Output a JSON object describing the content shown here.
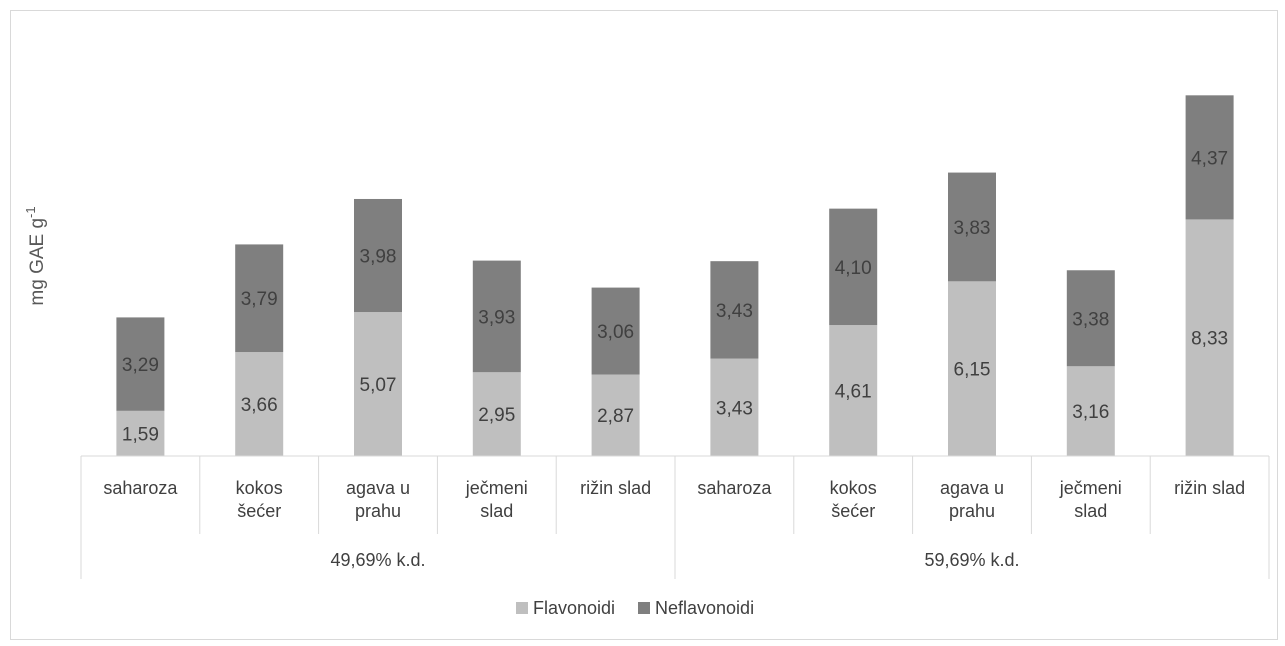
{
  "chart_data": {
    "type": "bar",
    "stacked": true,
    "title": "",
    "xlabel": "",
    "ylabel": "mg GAE g",
    "ylabel_superscript": "-1",
    "ylim": [
      0,
      13.2
    ],
    "grid": false,
    "legend_position": "bottom-center",
    "categories": [
      "saharoza",
      "kokos šećer",
      "agava u prahu",
      "ječmeni slad",
      "rižin slad",
      "saharoza",
      "kokos šećer",
      "agava u prahu",
      "ječmeni slad",
      "rižin slad"
    ],
    "category_lines": [
      [
        "saharoza"
      ],
      [
        "kokos",
        "šećer"
      ],
      [
        "agava u",
        "prahu"
      ],
      [
        "ječmeni",
        "slad"
      ],
      [
        "rižin slad"
      ],
      [
        "saharoza"
      ],
      [
        "kokos",
        "šećer"
      ],
      [
        "agava u",
        "prahu"
      ],
      [
        "ječmeni",
        "slad"
      ],
      [
        "rižin slad"
      ]
    ],
    "groups": [
      {
        "label": "49,69% k.d.",
        "start": 0,
        "count": 5
      },
      {
        "label": "59,69% k.d.",
        "start": 5,
        "count": 5
      }
    ],
    "series": [
      {
        "name": "Flavonoidi",
        "color": "#bfbfbf",
        "values": [
          1.59,
          3.66,
          5.07,
          2.95,
          2.87,
          3.43,
          4.61,
          6.15,
          3.16,
          8.33
        ],
        "labels": [
          "1,59",
          "3,66",
          "5,07",
          "2,95",
          "2,87",
          "3,43",
          "4,61",
          "6,15",
          "3,16",
          "8,33"
        ]
      },
      {
        "name": "Neflavonoidi",
        "color": "#7f7f7f",
        "values": [
          3.29,
          3.79,
          3.98,
          3.93,
          3.06,
          3.43,
          4.1,
          3.83,
          3.38,
          4.37
        ],
        "labels": [
          "3,29",
          "3,79",
          "3,98",
          "3,93",
          "3,06",
          "3,43",
          "4,10",
          "3,83",
          "3,38",
          "4,37"
        ]
      }
    ]
  }
}
